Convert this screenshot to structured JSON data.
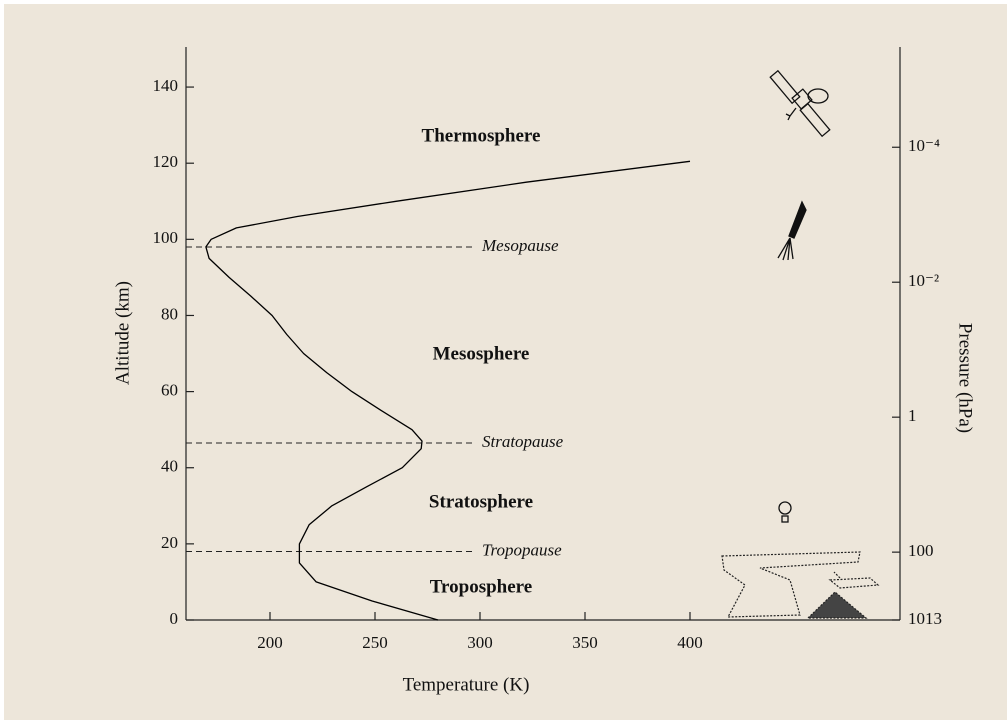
{
  "chart_data": {
    "type": "line",
    "xlabel": "Temperature (K)",
    "ylabel": "Altitude (km)",
    "y2label": "Pressure (hPa)",
    "x": [
      280,
      248.6,
      222,
      214,
      214,
      218.6,
      229.5,
      246,
      263,
      272,
      272.4,
      267.6,
      253,
      239,
      227,
      216,
      208,
      201,
      191,
      180.5,
      171,
      169.5,
      172,
      184,
      213,
      260,
      322,
      400
    ],
    "values": [
      0,
      5,
      10,
      15,
      20,
      25,
      30,
      35,
      40,
      45,
      47,
      50,
      55,
      60,
      65,
      70,
      75,
      80,
      85,
      90,
      95,
      98,
      100,
      103,
      106,
      110,
      115,
      120.5
    ],
    "color": "#000000",
    "xlim": [
      160,
      500
    ],
    "xticks": [
      200,
      250,
      300,
      350,
      400
    ],
    "ylim": [
      0,
      150
    ],
    "yticks": [
      0,
      20,
      40,
      60,
      80,
      100,
      120,
      140
    ],
    "y2lim": [
      1013,
      3.5e-06
    ],
    "y2scale": "log",
    "y2ticks": [
      1013,
      100,
      1,
      {
        "value": 0.01,
        "label": "10⁻²"
      },
      {
        "value": 0.0001,
        "label": "10⁻⁴"
      }
    ],
    "levels": [
      {
        "label": "Mesopause",
        "altitude": 98
      },
      {
        "label": "Stratopause",
        "altitude": 46.5
      },
      {
        "label": "Tropopause",
        "altitude": 18
      }
    ],
    "regions": [
      "Thermosphere",
      "Mesosphere",
      "Stratosphere",
      "Troposphere"
    ]
  }
}
